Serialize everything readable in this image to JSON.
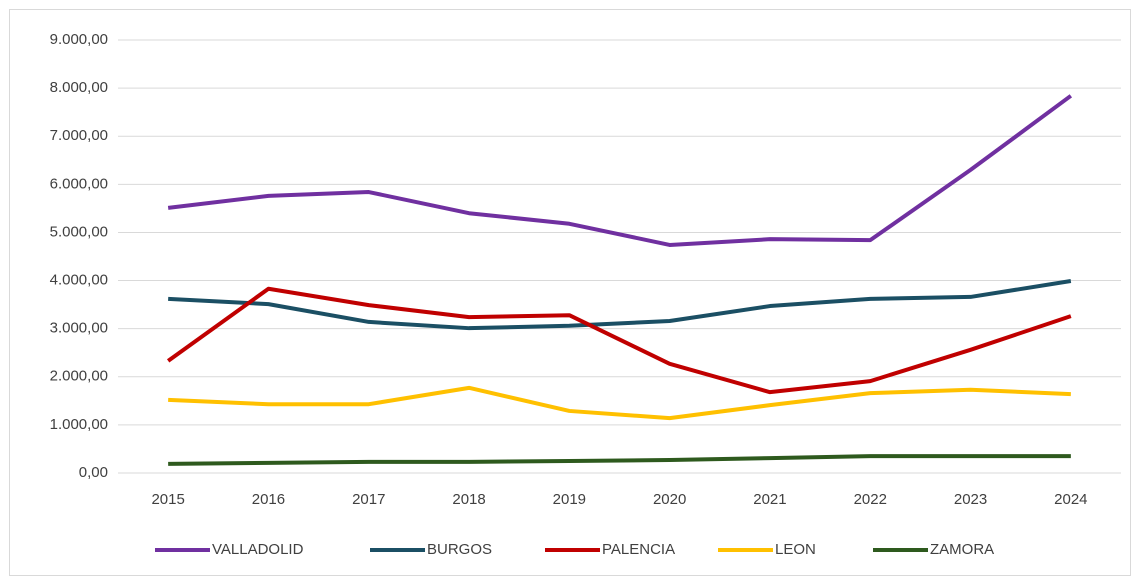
{
  "chart_data": {
    "type": "line",
    "x": [
      "2015",
      "2016",
      "2017",
      "2018",
      "2019",
      "2020",
      "2021",
      "2022",
      "2023",
      "2024"
    ],
    "series": [
      {
        "name": "VALLADOLID",
        "color": "#7030a0",
        "values": [
          5510,
          5760,
          5840,
          5400,
          5180,
          4740,
          4860,
          4840,
          6300,
          7840
        ]
      },
      {
        "name": "BURGOS",
        "color": "#1b4f64",
        "values": [
          3620,
          3510,
          3140,
          3010,
          3060,
          3160,
          3470,
          3620,
          3660,
          3990
        ]
      },
      {
        "name": "PALENCIA",
        "color": "#c00000",
        "values": [
          2330,
          3830,
          3490,
          3240,
          3280,
          2270,
          1680,
          1910,
          2560,
          3260
        ]
      },
      {
        "name": "LEON",
        "color": "#ffc000",
        "values": [
          1520,
          1430,
          1430,
          1770,
          1290,
          1140,
          1410,
          1660,
          1730,
          1640
        ]
      },
      {
        "name": "ZAMORA",
        "color": "#2e5a1e",
        "values": [
          190,
          210,
          230,
          230,
          250,
          270,
          310,
          350,
          350,
          350
        ]
      }
    ],
    "ylim": [
      0,
      9000
    ],
    "yticks": [
      {
        "value": 0,
        "label": "0,00"
      },
      {
        "value": 1000,
        "label": "1.000,00"
      },
      {
        "value": 2000,
        "label": "2.000,00"
      },
      {
        "value": 3000,
        "label": "3.000,00"
      },
      {
        "value": 4000,
        "label": "4.000,00"
      },
      {
        "value": 5000,
        "label": "5.000,00"
      },
      {
        "value": 6000,
        "label": "6.000,00"
      },
      {
        "value": 7000,
        "label": "7.000,00"
      },
      {
        "value": 8000,
        "label": "8.000,00"
      },
      {
        "value": 9000,
        "label": "9.000,00"
      }
    ],
    "grid": true,
    "legend": "bottom"
  }
}
